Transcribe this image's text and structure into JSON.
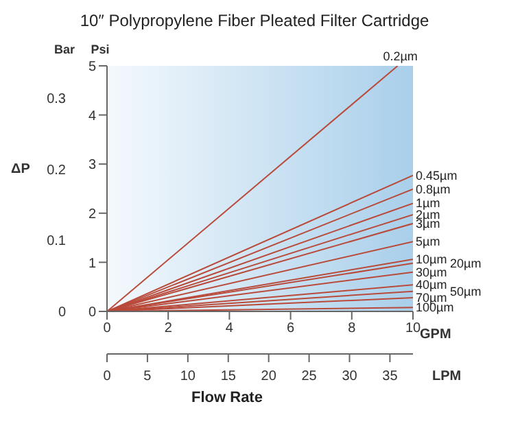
{
  "chart_data": {
    "type": "line",
    "title": "10″ Polypropylene Fiber Pleated Filter Cartridge",
    "xlabel": "GPM",
    "x2label": "LPM",
    "ylabel": "Psi",
    "y2label": "Bar",
    "annotations": [
      "ΔP",
      "Flow Rate"
    ],
    "xlim": [
      0,
      10
    ],
    "xticks": [
      0,
      2,
      4,
      6,
      8,
      10
    ],
    "x2lim": [
      0,
      37.85
    ],
    "x2ticks": [
      0,
      5,
      10,
      15,
      20,
      25,
      30,
      35
    ],
    "ylim": [
      0,
      5
    ],
    "yticks": [
      0,
      1,
      2,
      3,
      4,
      5
    ],
    "y2lim": [
      0,
      0.345
    ],
    "y2ticks": [
      0,
      0.1,
      0.2,
      0.3
    ],
    "grid": false,
    "legend": false,
    "marker": "none",
    "line_style": "solid",
    "series": [
      {
        "name": "0.2µm",
        "color": "#b94a3a",
        "x": [
          0,
          9.5
        ],
        "values": [
          0,
          5
        ]
      },
      {
        "name": "0.45µm",
        "color": "#b94a3a",
        "x": [
          0,
          10
        ],
        "values": [
          0,
          2.77
        ]
      },
      {
        "name": "0.8µm",
        "color": "#b94a3a",
        "x": [
          0,
          10
        ],
        "values": [
          0,
          2.49
        ]
      },
      {
        "name": "1µm",
        "color": "#b94a3a",
        "x": [
          0,
          10
        ],
        "values": [
          0,
          2.2
        ]
      },
      {
        "name": "2µm",
        "color": "#b94a3a",
        "x": [
          0,
          10
        ],
        "values": [
          0,
          1.97
        ]
      },
      {
        "name": "3µm",
        "color": "#b94a3a",
        "x": [
          0,
          10
        ],
        "values": [
          0,
          1.79
        ]
      },
      {
        "name": "5µm",
        "color": "#b94a3a",
        "x": [
          0,
          10
        ],
        "values": [
          0,
          1.42
        ]
      },
      {
        "name": "10µm",
        "color": "#b94a3a",
        "x": [
          0,
          10
        ],
        "values": [
          0,
          1.06
        ]
      },
      {
        "name": "20µm",
        "color": "#b94a3a",
        "x": [
          0,
          10
        ],
        "values": [
          0,
          0.98
        ]
      },
      {
        "name": "30µm",
        "color": "#b94a3a",
        "x": [
          0,
          10
        ],
        "values": [
          0,
          0.8
        ]
      },
      {
        "name": "40µm",
        "color": "#b94a3a",
        "x": [
          0,
          10
        ],
        "values": [
          0,
          0.54
        ]
      },
      {
        "name": "50µm",
        "color": "#b94a3a",
        "x": [
          0,
          10
        ],
        "values": [
          0,
          0.41
        ]
      },
      {
        "name": "70µm",
        "color": "#b94a3a",
        "x": [
          0,
          10
        ],
        "values": [
          0,
          0.28
        ]
      },
      {
        "name": "100µm",
        "color": "#b94a3a",
        "x": [
          0,
          10
        ],
        "values": [
          0,
          0.08
        ]
      }
    ]
  }
}
